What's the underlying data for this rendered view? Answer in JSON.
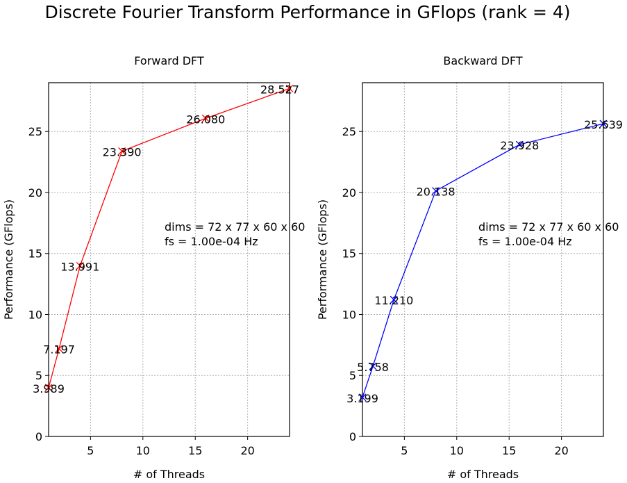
{
  "suptitle": "Discrete Fourier Transform Performance in GFlops (rank = 4)",
  "chart_data": [
    {
      "type": "line",
      "title": "Forward DFT",
      "xlabel": "# of Threads",
      "ylabel": "Performance (GFlops)",
      "xlim": [
        1,
        24
      ],
      "ylim": [
        0,
        29
      ],
      "xticks": [
        5,
        10,
        15,
        20
      ],
      "yticks": [
        0,
        5,
        10,
        15,
        20,
        25
      ],
      "grid": true,
      "marker": "x",
      "color": "#ff0000",
      "x": [
        1,
        2,
        4,
        8,
        16,
        24
      ],
      "y": [
        3.989,
        7.197,
        13.991,
        23.39,
        26.08,
        28.527
      ],
      "point_labels": [
        "3.989",
        "7.197",
        "13.991",
        "23.390",
        "26.080",
        "28.527"
      ],
      "annotation": [
        "dims = 72 x 77 x 60 x 60",
        "fs = 1.00e-04 Hz"
      ]
    },
    {
      "type": "line",
      "title": "Backward DFT",
      "xlabel": "# of Threads",
      "ylabel": "Performance (GFlops)",
      "xlim": [
        1,
        24
      ],
      "ylim": [
        0,
        29
      ],
      "xticks": [
        5,
        10,
        15,
        20
      ],
      "yticks": [
        0,
        5,
        10,
        15,
        20,
        25
      ],
      "grid": true,
      "marker": "x",
      "color": "#0000ff",
      "x": [
        1,
        2,
        4,
        8,
        16,
        24
      ],
      "y": [
        3.199,
        5.758,
        11.21,
        20.138,
        23.928,
        25.639
      ],
      "point_labels": [
        "3.199",
        "5.758",
        "11.210",
        "20.138",
        "23.928",
        "25.639"
      ],
      "annotation": [
        "dims = 72 x 77 x 60 x 60",
        "fs = 1.00e-04 Hz"
      ]
    }
  ]
}
